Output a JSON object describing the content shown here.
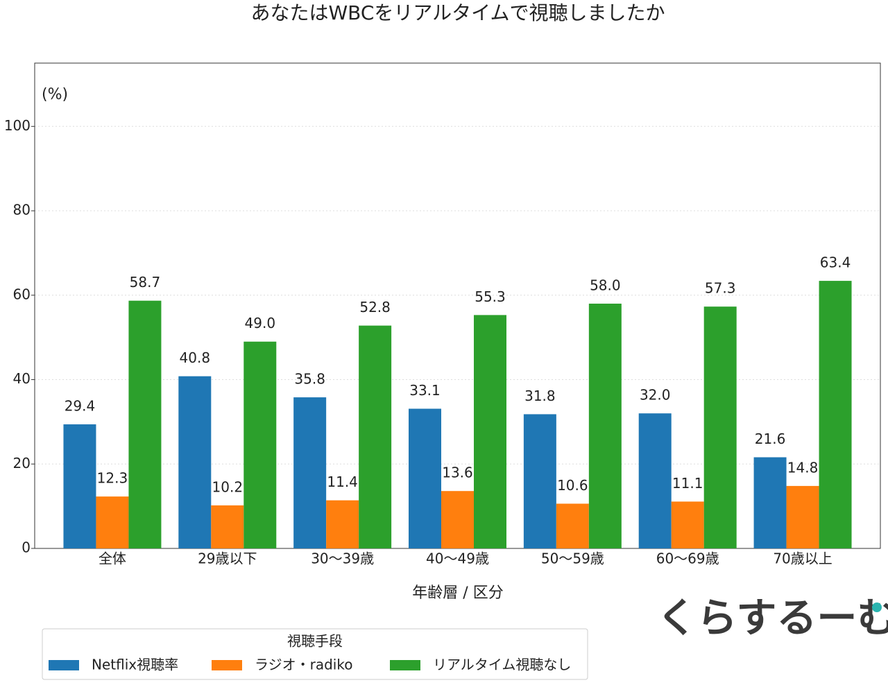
{
  "chart_data": {
    "type": "bar",
    "title": "あなたはWBCをリアルタイムで視聴しましたか",
    "y_unit_label": "(%)",
    "x_label": "年齢層 / 区分",
    "categories": [
      "全体",
      "29歳以下",
      "30〜39歳",
      "40〜49歳",
      "50〜59歳",
      "60〜69歳",
      "70歳以上"
    ],
    "series": [
      {
        "name": "Netflix視聴率",
        "color": "#1f77b4",
        "values": [
          29.4,
          40.8,
          35.8,
          33.1,
          31.8,
          32.0,
          21.6
        ],
        "value_labels": [
          "29.4",
          "40.8",
          "35.8",
          "33.1",
          "31.8",
          "32.0",
          "21.6"
        ]
      },
      {
        "name": "ラジオ・radiko",
        "color": "#ff7f0e",
        "values": [
          12.3,
          10.2,
          11.4,
          13.6,
          10.6,
          11.1,
          14.8
        ],
        "value_labels": [
          "12.3",
          "10.2",
          "11.4",
          "13.6",
          "10.6",
          "11.1",
          "14.8"
        ]
      },
      {
        "name": "リアルタイム視聴なし",
        "color": "#2ca02c",
        "values": [
          58.7,
          49.0,
          52.8,
          55.3,
          58.0,
          57.3,
          63.4
        ],
        "value_labels": [
          "58.7",
          "49.0",
          "52.8",
          "55.3",
          "58.0",
          "57.3",
          "63.4"
        ]
      }
    ],
    "ylim": [
      0,
      115
    ],
    "yticks": [
      0,
      20,
      40,
      60,
      80,
      100
    ],
    "grid": true,
    "legend_title": "視聴手段",
    "legend_position": "bottom-left",
    "logo": "くらするーむ"
  }
}
